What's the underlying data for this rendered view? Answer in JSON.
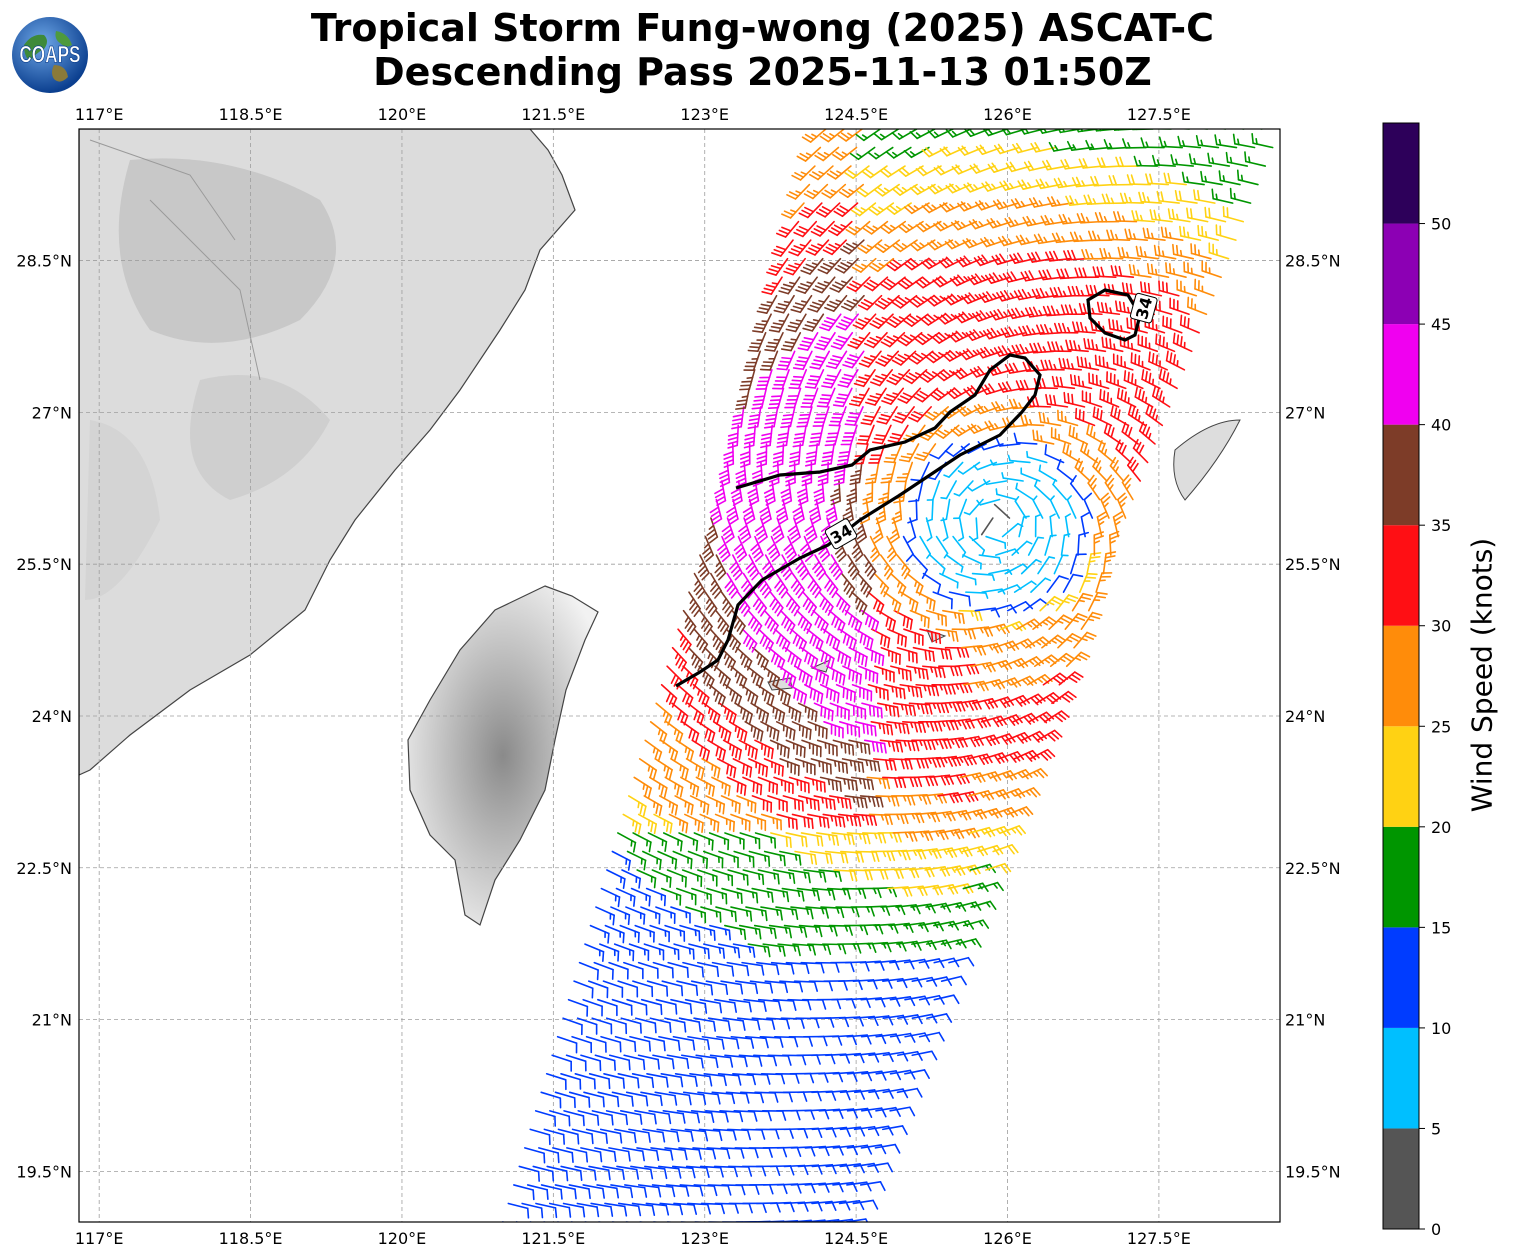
{
  "title": {
    "line1": "Tropical Storm Fung-wong (2025) ASCAT-C",
    "line2": "Descending Pass 2025-11-13 01:50Z"
  },
  "logo": {
    "text": "COAPS",
    "icon": "globe-logo-icon"
  },
  "map": {
    "lon_range": [
      116.8,
      128.7
    ],
    "lat_range": [
      19.0,
      29.8
    ],
    "lon_ticks": [
      {
        "value": 117.0,
        "label": "117°E"
      },
      {
        "value": 118.5,
        "label": "118.5°E"
      },
      {
        "value": 120.0,
        "label": "120°E"
      },
      {
        "value": 121.5,
        "label": "121.5°E"
      },
      {
        "value": 123.0,
        "label": "123°E"
      },
      {
        "value": 124.5,
        "label": "124.5°E"
      },
      {
        "value": 126.0,
        "label": "126°E"
      },
      {
        "value": 127.5,
        "label": "127.5°E"
      }
    ],
    "lat_ticks": [
      {
        "value": 19.5,
        "label": "19.5°N"
      },
      {
        "value": 21.0,
        "label": "21°N"
      },
      {
        "value": 22.5,
        "label": "22.5°N"
      },
      {
        "value": 24.0,
        "label": "24°N"
      },
      {
        "value": 25.5,
        "label": "25.5°N"
      },
      {
        "value": 27.0,
        "label": "27°N"
      },
      {
        "value": 28.5,
        "label": "28.5°N"
      }
    ],
    "gridlines": true,
    "contour": {
      "level": 34,
      "label": "34",
      "label_positions": [
        [
          124.35,
          25.8
        ],
        [
          127.35,
          28.03
        ]
      ]
    }
  },
  "colorbar": {
    "label": "Wind Speed (knots)",
    "bins": [
      {
        "min": 0,
        "max": 5,
        "color": "#555555"
      },
      {
        "min": 5,
        "max": 10,
        "color": "#00bfff"
      },
      {
        "min": 10,
        "max": 15,
        "color": "#003cff"
      },
      {
        "min": 15,
        "max": 20,
        "color": "#009600"
      },
      {
        "min": 20,
        "max": 25,
        "color": "#ffd213"
      },
      {
        "min": 25,
        "max": 30,
        "color": "#ff8c0a"
      },
      {
        "min": 30,
        "max": 35,
        "color": "#ff0f14"
      },
      {
        "min": 35,
        "max": 40,
        "color": "#7d3c28"
      },
      {
        "min": 40,
        "max": 45,
        "color": "#f000f0"
      },
      {
        "min": 45,
        "max": 50,
        "color": "#8c00b4"
      },
      {
        "min": 50,
        "max": 55,
        "color": "#2d005a"
      }
    ],
    "ticks": [
      {
        "value": 0,
        "label": "0"
      },
      {
        "value": 5,
        "label": "5"
      },
      {
        "value": 10,
        "label": "10"
      },
      {
        "value": 15,
        "label": "15"
      },
      {
        "value": 20,
        "label": "20"
      },
      {
        "value": 25,
        "label": "25"
      },
      {
        "value": 30,
        "label": "30"
      },
      {
        "value": 35,
        "label": "35"
      },
      {
        "value": 40,
        "label": "40"
      },
      {
        "value": 45,
        "label": "45"
      },
      {
        "value": 50,
        "label": "50"
      }
    ]
  }
}
